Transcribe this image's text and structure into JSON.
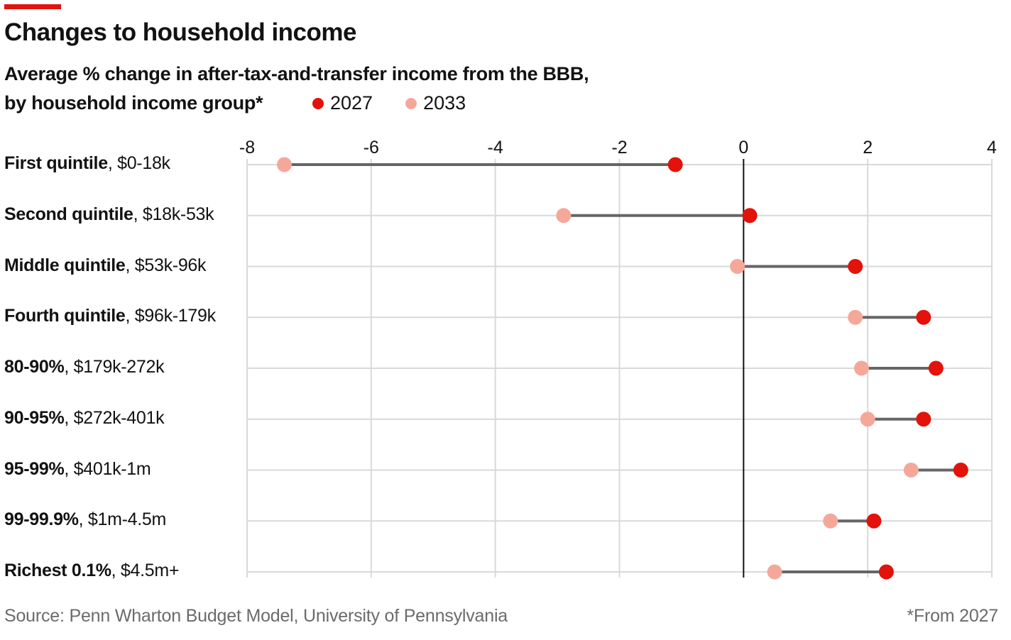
{
  "title": "Changes to household income",
  "subtitle_line1": "Average % change in after-tax-and-transfer income from the BBB,",
  "subtitle_line2": "by household income group*",
  "source": "Source: Penn Wharton Budget Model, University of Pennsylvania",
  "footnote": "*From 2027",
  "colors": {
    "accent": "#e3120b",
    "series_2027": "#e3120b",
    "series_2033": "#f5a89a",
    "connector": "#666666",
    "grid": "#d9d9d9",
    "zero_line": "#121212"
  },
  "chart_data": {
    "type": "dumbbell",
    "xlim": [
      -8,
      4
    ],
    "xticks": [
      -8,
      -6,
      -4,
      -2,
      0,
      2,
      4
    ],
    "grid": true,
    "legend_placement": "top",
    "categories": [
      {
        "bold": "First quintile",
        "rest": ", $0-18k"
      },
      {
        "bold": "Second quintile",
        "rest": ", $18k-53k"
      },
      {
        "bold": "Middle quintile",
        "rest": ", $53k-96k"
      },
      {
        "bold": "Fourth quintile",
        "rest": ", $96k-179k"
      },
      {
        "bold": "80-90%",
        "rest": ", $179k-272k"
      },
      {
        "bold": "90-95%",
        "rest": ", $272k-401k"
      },
      {
        "bold": "95-99%",
        "rest": ", $401k-1m"
      },
      {
        "bold": "99-99.9%",
        "rest": ", $1m-4.5m"
      },
      {
        "bold": "Richest 0.1%",
        "rest": ", $4.5m+"
      }
    ],
    "series": [
      {
        "name": "2027",
        "values": [
          -1.1,
          0.1,
          1.8,
          2.9,
          3.1,
          2.9,
          3.5,
          2.1,
          2.3
        ]
      },
      {
        "name": "2033",
        "values": [
          -7.4,
          -2.9,
          -0.1,
          1.8,
          1.9,
          2.0,
          2.7,
          1.4,
          0.5
        ]
      }
    ]
  }
}
